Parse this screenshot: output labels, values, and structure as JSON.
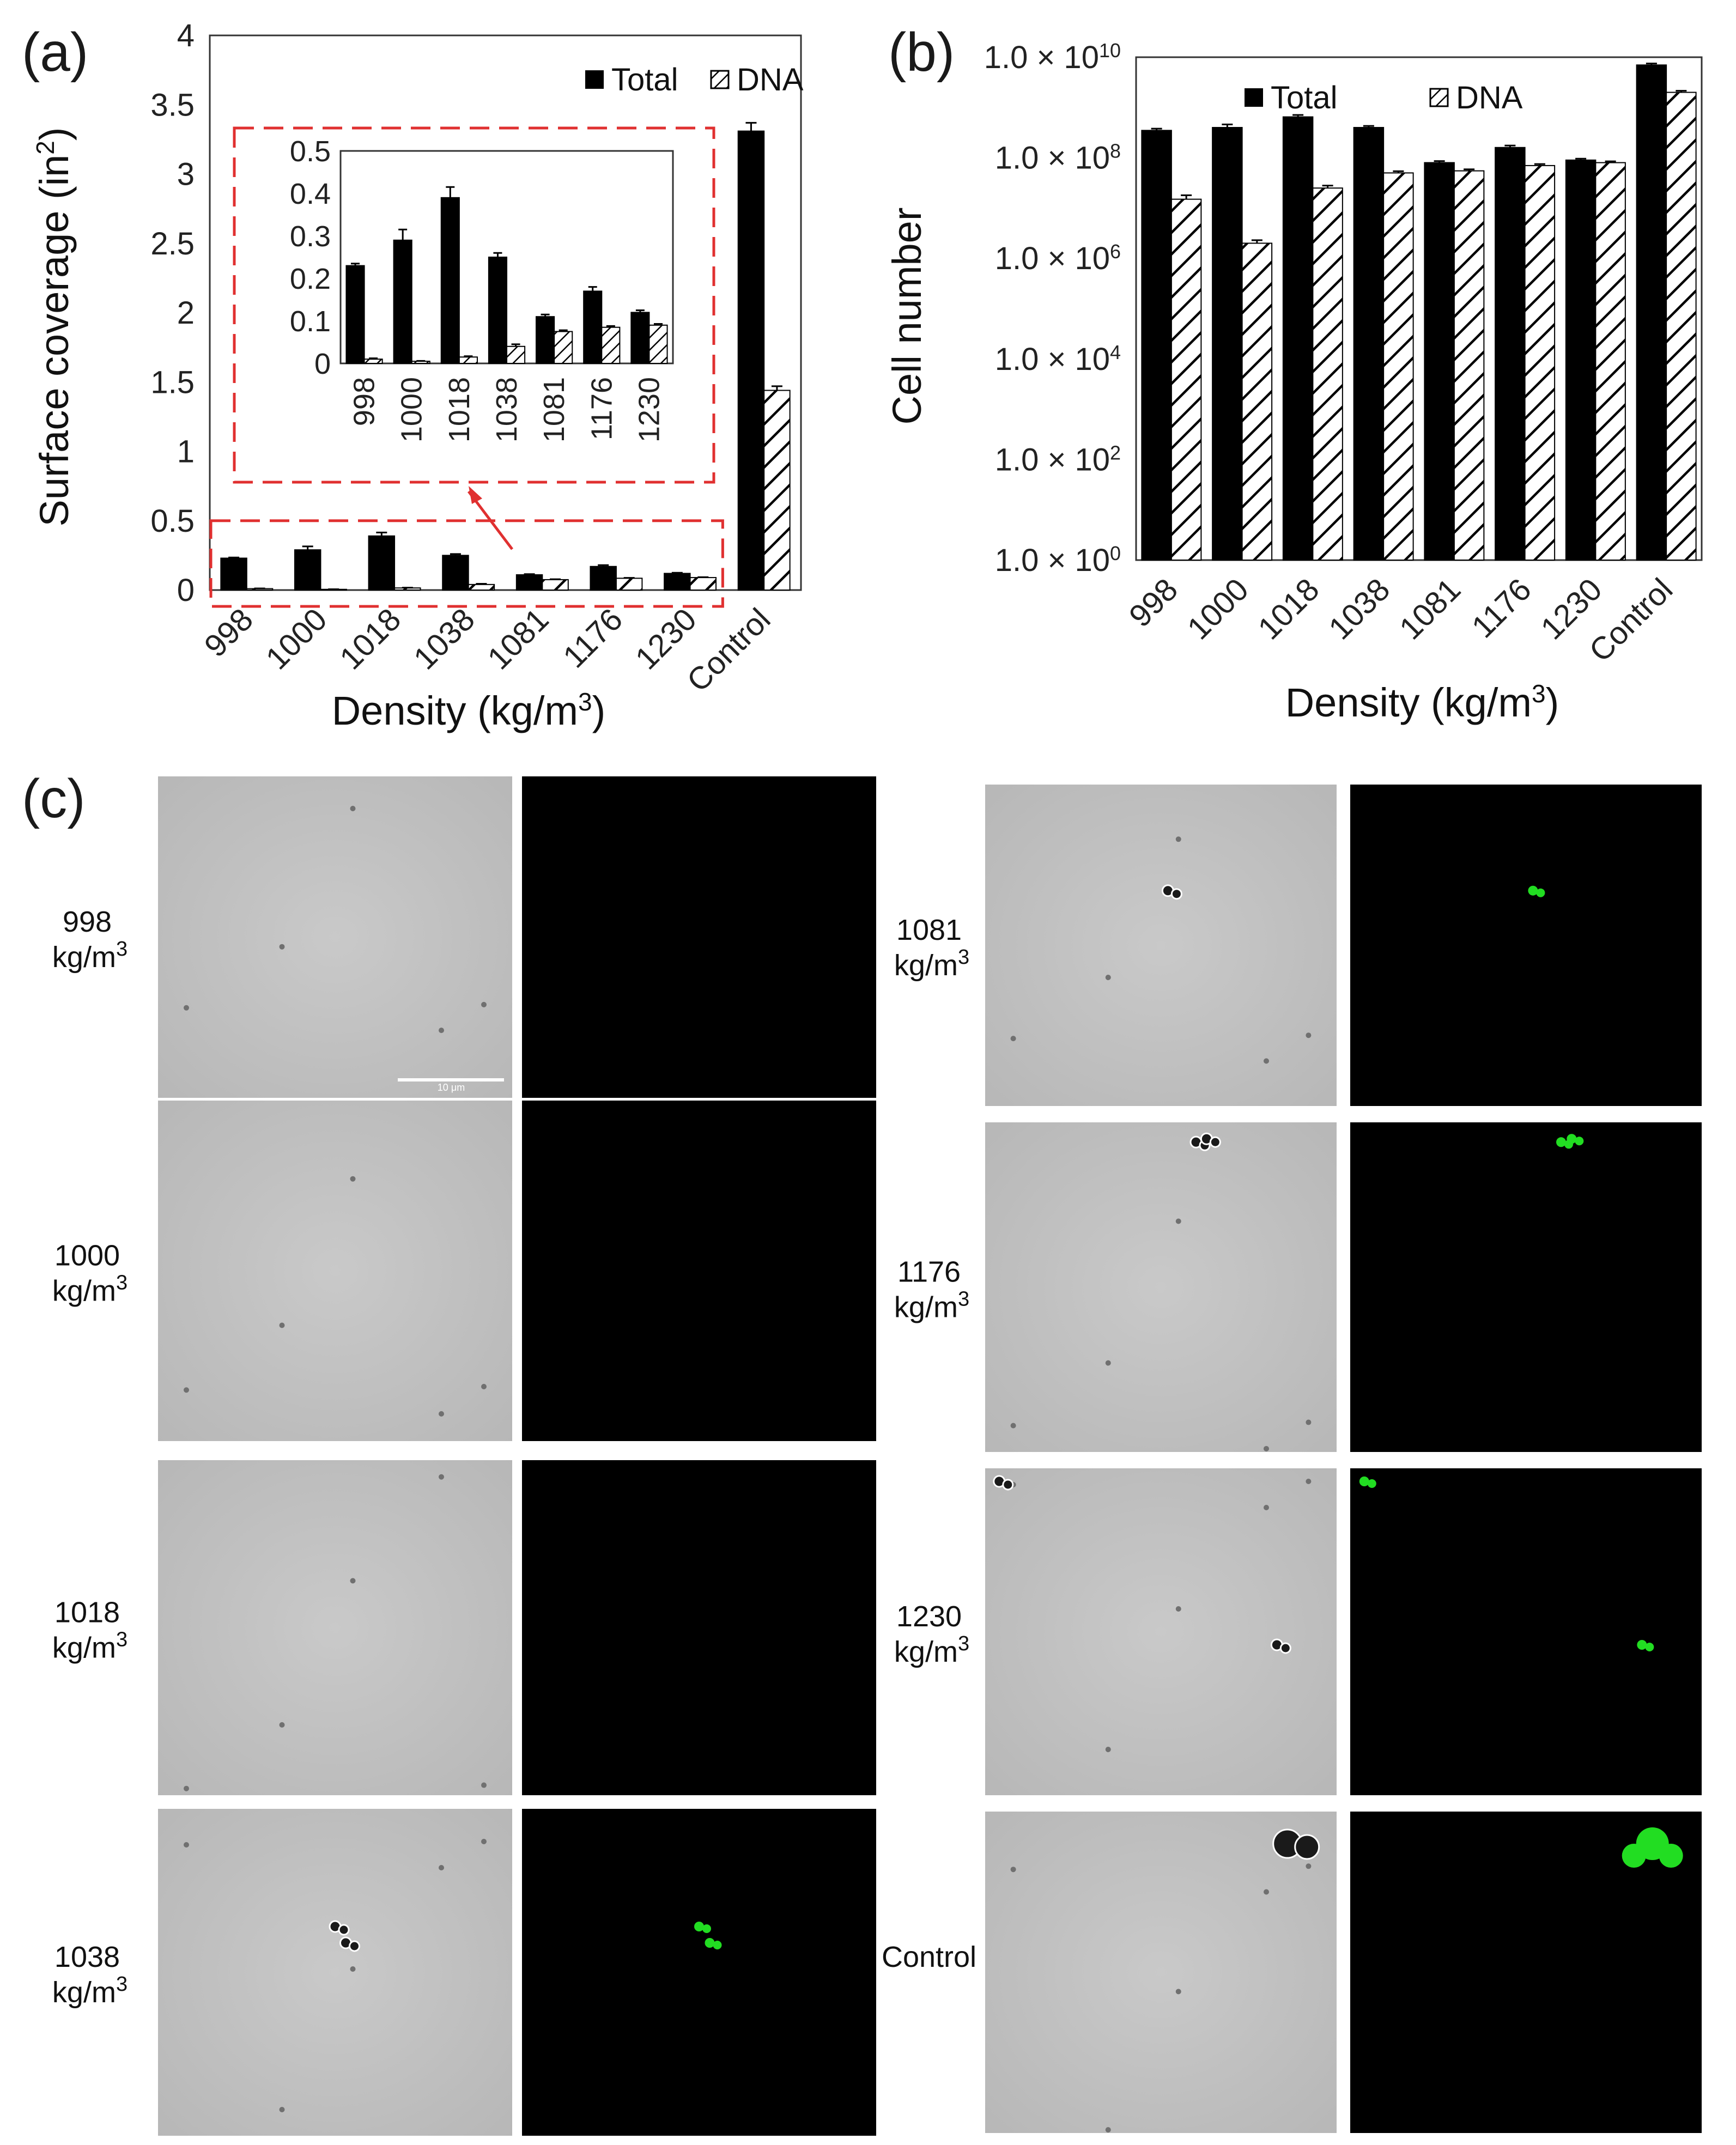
{
  "labels": {
    "a": "(a)",
    "b": "(b)",
    "c": "(c)"
  },
  "colors": {
    "total": "#000000",
    "dna_hatch": "#000000",
    "inset_box": "#e03030",
    "green_stain": "#22dd22",
    "brightfield": "#c2c2c2",
    "fluorescence": "#000000"
  },
  "chart_data": [
    {
      "id": "a",
      "type": "bar",
      "categories": [
        "998",
        "1000",
        "1018",
        "1038",
        "1081",
        "1176",
        "1230",
        "Control"
      ],
      "series": [
        {
          "name": "Total",
          "values": [
            0.23,
            0.29,
            0.39,
            0.25,
            0.11,
            0.17,
            0.12,
            3.31
          ],
          "errors": [
            0.005,
            0.025,
            0.025,
            0.01,
            0.005,
            0.01,
            0.005,
            0.06
          ]
        },
        {
          "name": "DNA",
          "values": [
            0.01,
            0.005,
            0.015,
            0.04,
            0.075,
            0.085,
            0.09,
            1.44
          ],
          "errors": [
            0.002,
            0.001,
            0.002,
            0.005,
            0.003,
            0.003,
            0.003,
            0.03
          ]
        }
      ],
      "xlabel_main": "Density (kg/m",
      "xlabel_sup": "3",
      "xlabel_end": ")",
      "ylabel_main": "Surface coverage (in",
      "ylabel_sup": "2",
      "ylabel_end": ")",
      "ylim": [
        0,
        4
      ],
      "yticks": [
        "0",
        "0.5",
        "1",
        "1.5",
        "2",
        "2.5",
        "3",
        "3.5",
        "4"
      ],
      "legend": "top-right",
      "inset": {
        "categories": [
          "998",
          "1000",
          "1018",
          "1038",
          "1081",
          "1176",
          "1230"
        ],
        "ylim": [
          0,
          0.5
        ],
        "yticks": [
          "0",
          "0.1",
          "0.2",
          "0.3",
          "0.4",
          "0.5"
        ]
      }
    },
    {
      "id": "b",
      "type": "bar",
      "categories": [
        "998",
        "1000",
        "1018",
        "1038",
        "1081",
        "1176",
        "1230",
        "Control"
      ],
      "y_scale": "log",
      "series": [
        {
          "name": "Total",
          "values": [
            350000000.0,
            400000000.0,
            650000000.0,
            400000000.0,
            80000000.0,
            160000000.0,
            90000000.0,
            7000000000.0
          ],
          "errors": [
            30000000.0,
            60000000.0,
            60000000.0,
            30000000.0,
            6000000.0,
            15000000.0,
            6000000.0,
            500000000.0
          ]
        },
        {
          "name": "DNA",
          "values": [
            15000000.0,
            2000000.0,
            25000000.0,
            50000000.0,
            55000000.0,
            70000000.0,
            80000000.0,
            2000000000.0
          ],
          "errors": [
            3000000.0,
            300000.0,
            3000000.0,
            4000000.0,
            4000000.0,
            5000000.0,
            5000000.0,
            150000000.0
          ]
        }
      ],
      "xlabel_main": "Density (kg/m",
      "xlabel_sup": "3",
      "xlabel_end": ")",
      "ylabel": "Cell number",
      "ylim": [
        1,
        10000000000.0
      ],
      "yticks": [
        {
          "base": "1.0 × 10",
          "exp": "0",
          "value": 1
        },
        {
          "base": "1.0 × 10",
          "exp": "2",
          "value": 100
        },
        {
          "base": "1.0 × 10",
          "exp": "4",
          "value": 10000
        },
        {
          "base": "1.0 × 10",
          "exp": "6",
          "value": 1000000
        },
        {
          "base": "1.0 × 10",
          "exp": "8",
          "value": 100000000
        },
        {
          "base": "1.0 × 10",
          "exp": "10",
          "value": 10000000000
        }
      ],
      "legend": "top"
    }
  ],
  "micrographs": {
    "unit_prefix": "kg/m",
    "unit_sup": "3",
    "scale_bar_text": "10 μm",
    "left": [
      {
        "label": "998",
        "green": []
      },
      {
        "label": "1000",
        "green": []
      },
      {
        "label": "1018",
        "green": []
      },
      {
        "label": "1038",
        "green": [
          [
            0.5,
            0.36
          ],
          [
            0.53,
            0.41
          ]
        ]
      }
    ],
    "right": [
      {
        "label": "1081",
        "green": [
          [
            0.52,
            0.33
          ]
        ]
      },
      {
        "label": "1176",
        "green": [
          [
            0.6,
            0.06
          ],
          [
            0.63,
            0.05
          ]
        ]
      },
      {
        "label": "1230",
        "green": [
          [
            0.04,
            0.04
          ],
          [
            0.83,
            0.54
          ]
        ]
      },
      {
        "label": "Control",
        "green": [
          [
            0.86,
            0.1
          ]
        ]
      }
    ]
  }
}
